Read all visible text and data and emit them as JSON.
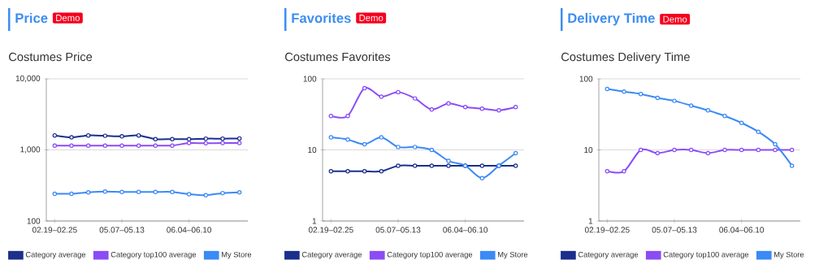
{
  "chart_data": [
    {
      "type": "line",
      "title": "Price",
      "subtitle": "Costumes Price",
      "annotations": [
        "Demo"
      ],
      "categories": [
        "02.19–02.25",
        null,
        null,
        null,
        "05.07–05.13",
        null,
        null,
        null,
        "06.04–06.10",
        null,
        null,
        null
      ],
      "series": [
        {
          "name": "Category average",
          "color": "#1b2f8c",
          "values": [
            1600,
            1500,
            1600,
            1580,
            1550,
            1600,
            1420,
            1420,
            1420,
            1440,
            1440,
            1450
          ]
        },
        {
          "name": "Category top100 average",
          "color": "#8b4cf6",
          "values": [
            1150,
            1150,
            1150,
            1150,
            1150,
            1150,
            1150,
            1150,
            1250,
            1240,
            1250,
            1250
          ]
        },
        {
          "name": "My Store",
          "color": "#3b8af5",
          "values": [
            242,
            242,
            253,
            260,
            256,
            256,
            256,
            256,
            238,
            230,
            247,
            253
          ]
        }
      ],
      "ylim": [
        100,
        10000
      ],
      "yticks": [
        {
          "value": 100,
          "label": "100"
        },
        {
          "value": 1000,
          "label": "1,000"
        },
        {
          "value": 10000,
          "label": "10,000"
        }
      ],
      "log": true,
      "grid": "y",
      "legend": "bottom",
      "marker": "circle"
    },
    {
      "type": "line",
      "title": "Favorites",
      "subtitle": "Costumes Favorites",
      "annotations": [
        "Demo"
      ],
      "categories": [
        "02.19–02.25",
        null,
        null,
        null,
        "05.07–05.13",
        null,
        null,
        null,
        "06.04–06.10",
        null,
        null,
        null
      ],
      "series": [
        {
          "name": "Category average",
          "color": "#1b2f8c",
          "values": [
            5,
            5,
            5,
            5,
            6,
            6,
            6,
            6,
            6,
            6,
            6,
            6
          ]
        },
        {
          "name": "Category top100 average",
          "color": "#8b4cf6",
          "values": [
            30,
            30,
            74,
            56,
            65,
            53,
            37,
            45,
            40,
            38,
            36,
            40
          ]
        },
        {
          "name": "My Store",
          "color": "#3b8af5",
          "values": [
            15,
            14,
            12,
            15,
            11,
            11,
            10,
            7,
            6,
            4,
            6,
            9
          ]
        }
      ],
      "ylim": [
        1,
        100
      ],
      "yticks": [
        1,
        10,
        100
      ],
      "log": true,
      "grid": "y",
      "legend": "bottom",
      "marker": "circle"
    },
    {
      "type": "line",
      "title": "Delivery Time",
      "subtitle": "Costumes Delivery Time",
      "annotations": [
        "Demo"
      ],
      "categories": [
        "02.19–02.25",
        null,
        null,
        null,
        "05.07–05.13",
        null,
        null,
        null,
        "06.04–06.10",
        null,
        null,
        null
      ],
      "series": [
        {
          "name": "Category average",
          "color": "#1b2f8c",
          "values": [
            null,
            null,
            null,
            null,
            null,
            null,
            null,
            null,
            null,
            null,
            null,
            null
          ]
        },
        {
          "name": "Category top100 average",
          "color": "#8b4cf6",
          "values": [
            5,
            5,
            10,
            9,
            10,
            10,
            9,
            10,
            10,
            10,
            10,
            10
          ]
        },
        {
          "name": "My Store",
          "color": "#3b8af5",
          "values": [
            72,
            66,
            61,
            54,
            49,
            42,
            36,
            30,
            24,
            18,
            12,
            6
          ]
        }
      ],
      "ylim": [
        1,
        100
      ],
      "yticks": [
        1,
        10,
        100
      ],
      "log": true,
      "grid": "y",
      "legend": "bottom",
      "marker": "circle"
    }
  ]
}
